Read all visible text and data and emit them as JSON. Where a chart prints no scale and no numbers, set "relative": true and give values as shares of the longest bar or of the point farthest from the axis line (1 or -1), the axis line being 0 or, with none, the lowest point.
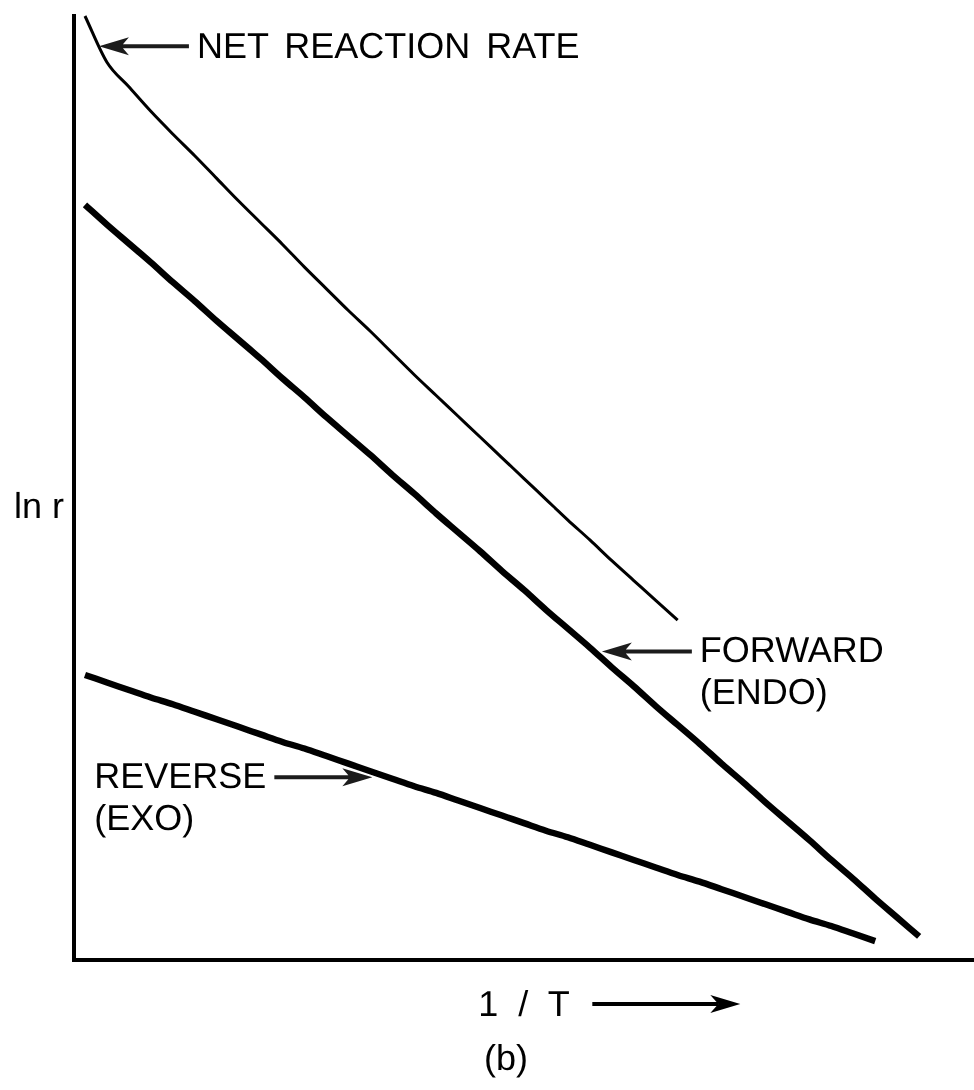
{
  "chart_data": {
    "type": "line",
    "relative": true,
    "xlabel": "1 / T",
    "ylabel": "ln r",
    "annotations": [
      "(b)"
    ],
    "categories": [
      null,
      null,
      null,
      null,
      null,
      null,
      null,
      null,
      null,
      null,
      null,
      null,
      null,
      null,
      null,
      null,
      null,
      null,
      null,
      null,
      null,
      null,
      null,
      null,
      null,
      null,
      null,
      null,
      null,
      null,
      null,
      null,
      null,
      null,
      null,
      null,
      null,
      null,
      null,
      null,
      null
    ],
    "series": [
      {
        "name": "NET REACTION RATE",
        "color": "#000000",
        "values": [
          1,
          0.951,
          0.925,
          0.899,
          0.875,
          0.852,
          0.828,
          0.804,
          0.781,
          0.758,
          0.734,
          0.711,
          0.688,
          0.666,
          0.643,
          0.62,
          0.598,
          0.576,
          0.554,
          0.532,
          0.51,
          0.488,
          0.466,
          0.445,
          0.423,
          0.402,
          0.381,
          0.36,
          null,
          null,
          null,
          null,
          null,
          null,
          null,
          null,
          null,
          null,
          null,
          null,
          null
        ]
      },
      {
        "name": "FORWARD (ENDO)",
        "color": "#000000",
        "values": [
          0.8,
          0.779,
          0.759,
          0.739,
          0.718,
          0.698,
          0.677,
          0.657,
          0.637,
          0.616,
          0.596,
          0.575,
          0.555,
          0.535,
          0.514,
          0.494,
          0.473,
          0.453,
          0.433,
          0.412,
          0.392,
          0.371,
          0.351,
          0.331,
          0.31,
          0.29,
          0.269,
          0.249,
          0.229,
          0.208,
          0.188,
          0.167,
          0.147,
          0.127,
          0.106,
          0.086,
          0.065,
          0.045,
          0.025,
          null,
          null
        ]
      },
      {
        "name": "REVERSE (EXO)",
        "color": "#000000",
        "values": [
          0.302,
          0.294,
          0.286,
          0.278,
          0.271,
          0.263,
          0.255,
          0.247,
          0.239,
          0.231,
          0.224,
          0.216,
          0.208,
          0.2,
          0.192,
          0.184,
          0.177,
          0.169,
          0.161,
          0.153,
          0.145,
          0.137,
          0.13,
          0.122,
          0.114,
          0.106,
          0.098,
          0.09,
          0.083,
          0.075,
          0.067,
          0.059,
          0.051,
          0.043,
          0.036,
          0.028,
          0.02,
          null,
          null,
          null,
          null
        ]
      }
    ],
    "legend": false,
    "grid": false,
    "marker": "none",
    "line_style": "solid",
    "tick_labels": false
  }
}
